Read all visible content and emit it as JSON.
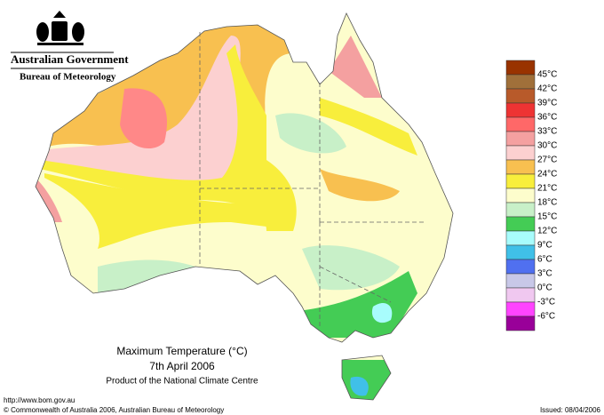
{
  "header": {
    "organisation": "Australian Government",
    "agency": "Bureau of Meteorology"
  },
  "legend": {
    "labels": [
      "45°C",
      "42°C",
      "39°C",
      "36°C",
      "33°C",
      "30°C",
      "27°C",
      "24°C",
      "21°C",
      "18°C",
      "15°C",
      "12°C",
      "9°C",
      "6°C",
      "3°C",
      "0°C",
      "-3°C",
      "-6°C"
    ],
    "colors": [
      "#993300",
      "#a0703a",
      "#b85a2a",
      "#ee3333",
      "#ff6868",
      "#f4a0a0",
      "#fcd0d0",
      "#f8c050",
      "#f8ee3c",
      "#fdfdcc",
      "#c8f0c8",
      "#44cc55",
      "#a8fcfc",
      "#40c0e8",
      "#5070f0",
      "#c8c8e8",
      "#f0c8f0",
      "#ff44ff",
      "#990099"
    ]
  },
  "title": {
    "line1": "Maximum Temperature (°C)",
    "line2": "7th April 2006",
    "line3": "Product of the National Climate Centre"
  },
  "footer": {
    "url": "http://www.bom.gov.au",
    "copyright": "© Commonwealth of Australia 2006, Australian Bureau of Meteorology",
    "issued": "Issued: 08/04/2006"
  }
}
